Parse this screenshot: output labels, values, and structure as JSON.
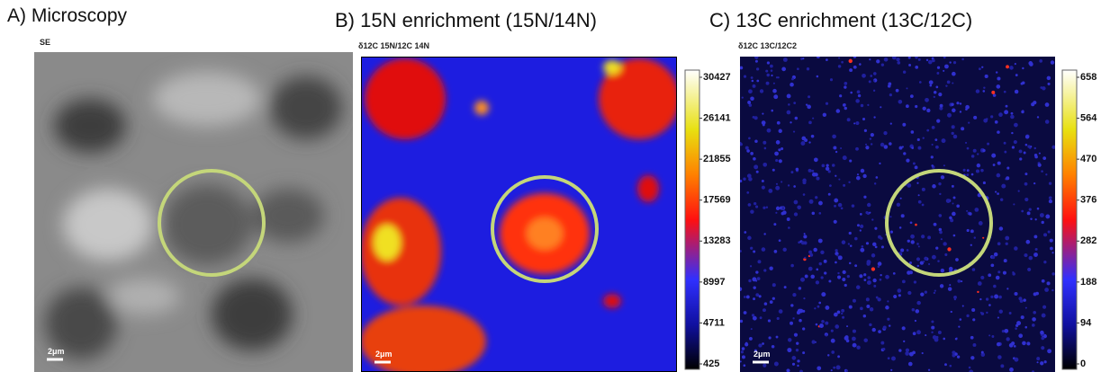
{
  "panels": [
    {
      "title": "A) Microscopy",
      "subtitle": "SE",
      "scale_bar": "2μm"
    },
    {
      "title": "B) 15N enrichment (15N/14N)",
      "subtitle": "δ12C 15N/12C 14N",
      "scale_bar": "2μm",
      "colorbar_ticks": [
        30427,
        26141,
        21855,
        17569,
        13283,
        8997,
        4711,
        425
      ]
    },
    {
      "title": "C) 13C enrichment (13C/12C)",
      "subtitle": "δ12C 13C/12C2",
      "scale_bar": "2μm",
      "colorbar_ticks": [
        658,
        564,
        470,
        376,
        282,
        188,
        94,
        0
      ]
    }
  ]
}
